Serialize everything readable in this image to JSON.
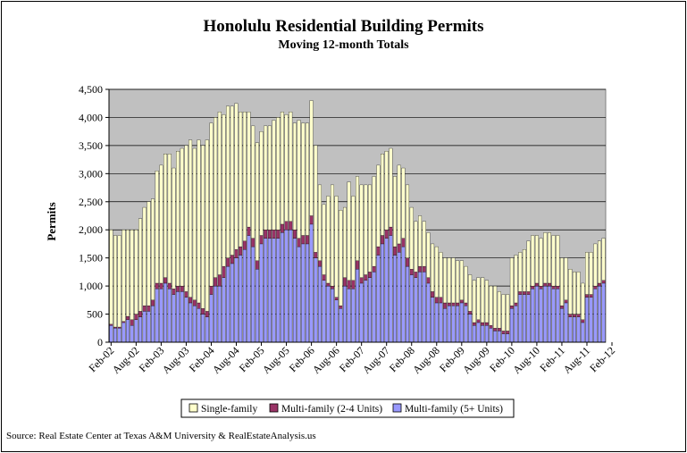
{
  "chart_data": {
    "type": "bar",
    "stacked": true,
    "title": "Honolulu Residential Building Permits",
    "subtitle": "Moving 12-month Totals",
    "ylabel": "Permits",
    "xlabel": "",
    "ylim": [
      0,
      4500
    ],
    "yticks": [
      "0",
      "500",
      "1,000",
      "1,500",
      "2,000",
      "2,500",
      "3,000",
      "3,500",
      "4,000",
      "4,500"
    ],
    "ytick_values": [
      0,
      500,
      1000,
      1500,
      2000,
      2500,
      3000,
      3500,
      4000,
      4500
    ],
    "grid": true,
    "legend_position": "bottom",
    "start_month": "Feb-02",
    "x_tick_labels": [
      "Feb-02",
      "Aug-02",
      "Feb-03",
      "Aug-03",
      "Feb-04",
      "Aug-04",
      "Feb-05",
      "Aug-05",
      "Feb-06",
      "Aug-06",
      "Feb-07",
      "Aug-07",
      "Feb-08",
      "Aug-08",
      "Feb-09",
      "Aug-09",
      "Feb-10",
      "Aug-10",
      "Feb-11",
      "Aug-11",
      "Feb-12"
    ],
    "series": [
      {
        "name": "Multi-family (5+ Units)",
        "color": "#9999ff",
        "values": [
          300,
          250,
          250,
          350,
          400,
          300,
          400,
          450,
          550,
          550,
          650,
          950,
          950,
          1050,
          950,
          850,
          900,
          900,
          800,
          700,
          650,
          600,
          500,
          450,
          850,
          1000,
          1000,
          1150,
          1350,
          1400,
          1500,
          1550,
          1650,
          1900,
          1700,
          1300,
          1750,
          1850,
          1850,
          1850,
          1850,
          1950,
          2000,
          2000,
          1850,
          1700,
          1750,
          1750,
          2100,
          1500,
          1350,
          1100,
          1000,
          950,
          750,
          600,
          1000,
          950,
          950,
          1300,
          1050,
          1100,
          1150,
          1250,
          1550,
          1750,
          1850,
          1900,
          1550,
          1600,
          1700,
          1350,
          1200,
          1150,
          1250,
          1250,
          1050,
          800,
          700,
          700,
          600,
          650,
          650,
          650,
          700,
          650,
          500,
          300,
          350,
          300,
          300,
          250,
          200,
          200,
          150,
          150,
          600,
          650,
          850,
          850,
          850,
          950,
          1000,
          950,
          1000,
          1000,
          950,
          950,
          600,
          700,
          450,
          450,
          450,
          350,
          800,
          800,
          950,
          1000,
          1050
        ]
      },
      {
        "name": "Multi-family (2-4 Units)",
        "color": "#993366",
        "values": [
          20,
          20,
          20,
          20,
          60,
          100,
          100,
          100,
          100,
          100,
          100,
          100,
          100,
          100,
          100,
          100,
          100,
          100,
          100,
          100,
          100,
          100,
          100,
          100,
          150,
          150,
          200,
          200,
          150,
          150,
          150,
          150,
          150,
          150,
          150,
          150,
          150,
          150,
          150,
          150,
          150,
          150,
          150,
          150,
          150,
          150,
          150,
          150,
          150,
          100,
          100,
          100,
          50,
          50,
          50,
          50,
          150,
          150,
          150,
          150,
          100,
          100,
          100,
          100,
          150,
          150,
          150,
          150,
          150,
          150,
          150,
          150,
          100,
          100,
          100,
          100,
          100,
          100,
          100,
          100,
          100,
          50,
          50,
          50,
          50,
          50,
          50,
          50,
          50,
          50,
          50,
          50,
          50,
          50,
          50,
          50,
          50,
          50,
          50,
          50,
          50,
          50,
          50,
          50,
          50,
          50,
          50,
          50,
          50,
          50,
          50,
          50,
          50,
          50,
          50,
          50,
          50,
          50,
          50,
          50,
          50
        ]
      },
      {
        "name": "Single-family",
        "color": "#ffffcc",
        "values": [
          1680,
          1630,
          1630,
          1630,
          1540,
          1600,
          1500,
          1650,
          1750,
          1850,
          1800,
          2000,
          2100,
          2200,
          2300,
          2150,
          2400,
          2450,
          2600,
          2800,
          2700,
          2900,
          2900,
          3050,
          2900,
          2850,
          2900,
          2700,
          2700,
          2650,
          2600,
          2400,
          2300,
          2050,
          2000,
          2100,
          1850,
          1850,
          1850,
          1950,
          2000,
          2000,
          1900,
          1950,
          1900,
          2100,
          2000,
          2000,
          2050,
          1900,
          1350,
          1250,
          1550,
          1800,
          1800,
          1700,
          1250,
          1750,
          1500,
          1500,
          1650,
          1600,
          1550,
          1600,
          1450,
          1450,
          1400,
          1400,
          1250,
          1400,
          1250,
          1300,
          1100,
          900,
          900,
          800,
          800,
          850,
          900,
          800,
          800,
          800,
          800,
          750,
          700,
          650,
          650,
          750,
          750,
          800,
          750,
          700,
          750,
          650,
          650,
          650,
          850,
          850,
          700,
          750,
          900,
          900,
          850,
          850,
          900,
          900,
          900,
          900,
          850,
          750,
          800,
          750,
          750,
          650,
          750,
          750,
          750,
          750,
          750
        ]
      }
    ]
  },
  "legend": {
    "items": [
      {
        "label": "Single-family",
        "color": "#ffffcc"
      },
      {
        "label": "Multi-family (2-4 Units)",
        "color": "#993366"
      },
      {
        "label": "Multi-family (5+ Units)",
        "color": "#9999ff"
      }
    ]
  },
  "source": "Source: Real Estate Center at Texas A&M University & RealEstateAnalysis.us"
}
